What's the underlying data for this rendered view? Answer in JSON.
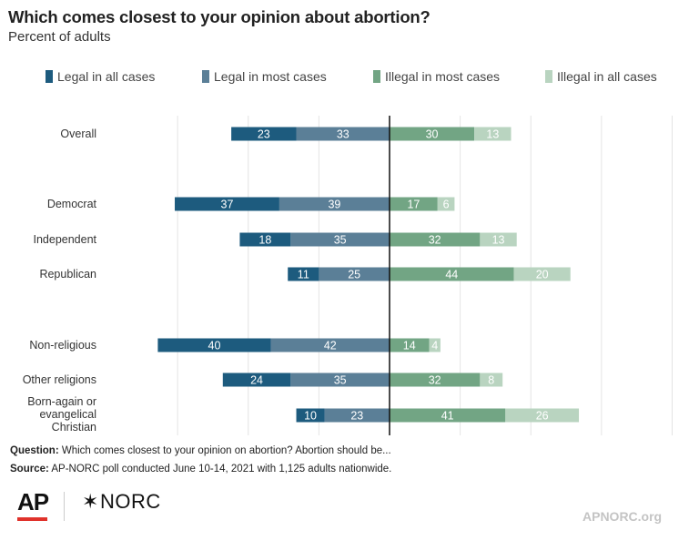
{
  "title": "Which comes closest to your opinion about abortion?",
  "subtitle": "Percent of adults",
  "legend": [
    {
      "label": "Legal in all cases",
      "color": "#1d5b7e"
    },
    {
      "label": "Legal in most cases",
      "color": "#5b7f97"
    },
    {
      "label": "Illegal in most cases",
      "color": "#72a584"
    },
    {
      "label": "Illegal in all cases",
      "color": "#b9d4c0"
    }
  ],
  "chart_data": {
    "type": "bar",
    "orientation": "horizontal-diverging",
    "categories": [
      "Overall",
      "Democrat",
      "Independent",
      "Republican",
      "Non-religious",
      "Other religions",
      "Born-again or evangelical Christian"
    ],
    "series": [
      {
        "name": "Legal in all cases",
        "side": "left",
        "values": [
          23,
          37,
          18,
          11,
          40,
          24,
          10
        ]
      },
      {
        "name": "Legal in most cases",
        "side": "left",
        "values": [
          33,
          39,
          35,
          25,
          42,
          35,
          23
        ]
      },
      {
        "name": "Illegal in most cases",
        "side": "right",
        "values": [
          30,
          17,
          32,
          44,
          14,
          32,
          41
        ]
      },
      {
        "name": "Illegal in all cases",
        "side": "right",
        "values": [
          13,
          6,
          13,
          20,
          4,
          8,
          26
        ]
      }
    ],
    "xlim": [
      -82,
      100
    ],
    "grid": true,
    "legend_position": "top"
  },
  "footer": {
    "question_label": "Question:",
    "question_text": "Which comes closest to your opinion on abortion? Abortion should be...",
    "source_label": "Source:",
    "source_text": "AP-NORC poll conducted June 10-14, 2021 with 1,125 adults nationwide."
  },
  "logos": {
    "ap": "AP",
    "norc": "NORC",
    "norc_icon": "asterisk-star-icon",
    "ap_color": "#e0322b"
  },
  "site": "APNORC.org"
}
